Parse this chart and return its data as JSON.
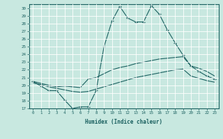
{
  "xlabel": "Humidex (Indice chaleur)",
  "xlim": [
    -0.5,
    23.5
  ],
  "ylim": [
    17,
    30.5
  ],
  "xticks": [
    0,
    1,
    2,
    3,
    4,
    5,
    6,
    7,
    8,
    9,
    10,
    11,
    12,
    13,
    14,
    15,
    16,
    17,
    18,
    19,
    20,
    21,
    22,
    23
  ],
  "yticks": [
    17,
    18,
    19,
    20,
    21,
    22,
    23,
    24,
    25,
    26,
    27,
    28,
    29,
    30
  ],
  "background_color": "#c8e8e0",
  "line_color": "#1a6060",
  "grid_color": "#ffffff",
  "line1_x": [
    0,
    1,
    2,
    3,
    4,
    5,
    6,
    7,
    8,
    9,
    10,
    11,
    12,
    13,
    14,
    15,
    16,
    17,
    18,
    19,
    20,
    21,
    22,
    23
  ],
  "line1_y": [
    20.5,
    19.9,
    19.3,
    19.3,
    18.1,
    17.0,
    17.2,
    17.2,
    19.3,
    25.0,
    28.3,
    30.2,
    28.7,
    28.2,
    28.2,
    30.3,
    29.2,
    27.2,
    25.5,
    23.9,
    22.5,
    21.8,
    21.2,
    20.8
  ],
  "line2_x": [
    0,
    2,
    3,
    4,
    5,
    6,
    7,
    8,
    9,
    10,
    11,
    12,
    13,
    14,
    15,
    16,
    17,
    18,
    19,
    20,
    21,
    22,
    23
  ],
  "line2_y": [
    20.5,
    20.0,
    19.8,
    19.9,
    19.8,
    19.7,
    20.8,
    21.0,
    21.5,
    22.0,
    22.3,
    22.5,
    22.8,
    23.0,
    23.2,
    23.4,
    23.5,
    23.6,
    23.7,
    22.5,
    22.2,
    21.8,
    21.2
  ],
  "line3_x": [
    0,
    1,
    2,
    3,
    4,
    5,
    6,
    7,
    8,
    9,
    10,
    11,
    12,
    13,
    14,
    15,
    16,
    17,
    18,
    19,
    20,
    21,
    22,
    23
  ],
  "line3_y": [
    20.3,
    20.1,
    19.8,
    19.6,
    19.4,
    19.2,
    19.1,
    19.2,
    19.5,
    19.8,
    20.1,
    20.4,
    20.7,
    21.0,
    21.2,
    21.4,
    21.6,
    21.8,
    22.0,
    22.1,
    21.2,
    20.9,
    20.6,
    20.4
  ]
}
